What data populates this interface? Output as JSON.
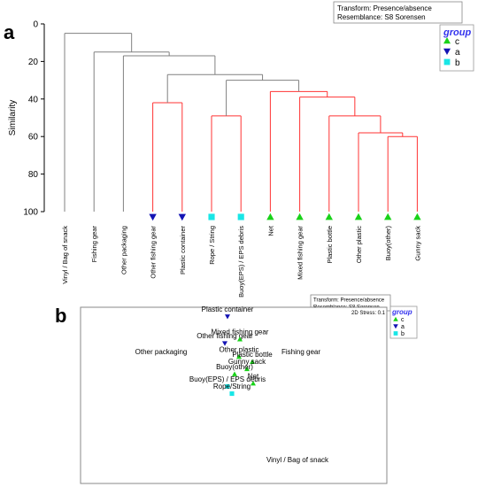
{
  "colors": {
    "c": "#19d219",
    "a": "#1414b4",
    "b": "#19e6e6",
    "link": "#ff3333",
    "tree": "#808080",
    "legend_title": "#3333ee"
  },
  "panel_a": {
    "letter": "a",
    "info": [
      "Transform: Presence/absence",
      "Resemblance: S8 Sorensen"
    ],
    "ylabel": "Similarity",
    "yticks": [
      "0",
      "20",
      "40",
      "60",
      "80",
      "100"
    ],
    "legend": {
      "title": "group",
      "items": [
        {
          "label": "c",
          "group": "c"
        },
        {
          "label": "a",
          "group": "a"
        },
        {
          "label": "b",
          "group": "b"
        }
      ]
    }
  },
  "panel_b": {
    "letter": "b",
    "info": [
      "Transform: Presence/absence",
      "Resemblance: S8 Sorensen"
    ],
    "stress": "2D Stress: 0.1",
    "legend": {
      "title": "group",
      "items": [
        {
          "label": "c",
          "group": "c"
        },
        {
          "label": "a",
          "group": "a"
        },
        {
          "label": "b",
          "group": "b"
        }
      ]
    }
  },
  "chart_data": [
    {
      "type": "dendrogram",
      "ylabel": "Similarity",
      "ylim": [
        0,
        100
      ],
      "leaves": [
        {
          "label": "Vinyl / Bag of snack",
          "group": ""
        },
        {
          "label": "Fishing gear",
          "group": ""
        },
        {
          "label": "Other packaging",
          "group": ""
        },
        {
          "label": "Other fishing gear",
          "group": "a"
        },
        {
          "label": "Plastic container",
          "group": "a"
        },
        {
          "label": "Rope / String",
          "group": "b"
        },
        {
          "label": "Buoy(EPS) / EPS debris",
          "group": "b"
        },
        {
          "label": "Net",
          "group": "c"
        },
        {
          "label": "Mixed fishing gear",
          "group": "c"
        },
        {
          "label": "Plastic bottle",
          "group": "c"
        },
        {
          "label": "Other plastic",
          "group": "c"
        },
        {
          "label": "Buoy(other)",
          "group": "c"
        },
        {
          "label": "Gunny sack",
          "group": "c"
        }
      ],
      "merges": [
        {
          "id": "m1",
          "left": 11,
          "right": 12,
          "sim": 60,
          "sig": true
        },
        {
          "id": "m2",
          "left": 10,
          "right": "m1",
          "sim": 58,
          "sig": true
        },
        {
          "id": "m3",
          "left": 9,
          "right": "m2",
          "sim": 49,
          "sig": true
        },
        {
          "id": "m4",
          "left": 8,
          "right": "m3",
          "sim": 39,
          "sig": true
        },
        {
          "id": "m5",
          "left": 7,
          "right": "m4",
          "sim": 36,
          "sig": true
        },
        {
          "id": "m6",
          "left": 5,
          "right": 6,
          "sim": 49,
          "sig": true
        },
        {
          "id": "m7",
          "left": 3,
          "right": 4,
          "sim": 42,
          "sig": true
        },
        {
          "id": "m8",
          "left": "m6",
          "right": "m5",
          "sim": 30,
          "sig": false
        },
        {
          "id": "m9",
          "left": "m7",
          "right": "m8",
          "sim": 27,
          "sig": false
        },
        {
          "id": "m10",
          "left": 2,
          "right": "m9",
          "sim": 17,
          "sig": false
        },
        {
          "id": "m11",
          "left": 1,
          "right": "m10",
          "sim": 15,
          "sig": false
        },
        {
          "id": "m12",
          "left": 0,
          "right": "m11",
          "sim": 5,
          "sig": false
        }
      ]
    },
    {
      "type": "scatter",
      "subtype": "nMDS",
      "points": [
        {
          "label": "Plastic container",
          "group": "a",
          "x": -0.05,
          "y": 0.84
        },
        {
          "label": "Other fishing gear",
          "group": "a",
          "x": -0.08,
          "y": 0.58
        },
        {
          "label": "Mixed fishing gear",
          "group": "c",
          "x": 0.09,
          "y": 0.62
        },
        {
          "label": "Other plastic",
          "group": "c",
          "x": 0.08,
          "y": 0.45
        },
        {
          "label": "Plastic bottle",
          "group": "c",
          "x": 0.23,
          "y": 0.4
        },
        {
          "label": "Gunny sack",
          "group": "c",
          "x": 0.17,
          "y": 0.33
        },
        {
          "label": "Buoy(other)",
          "group": "c",
          "x": 0.03,
          "y": 0.28
        },
        {
          "label": "Net",
          "group": "c",
          "x": 0.24,
          "y": 0.19
        },
        {
          "label": "Buoy(EPS) / EPS debris",
          "group": "b",
          "x": -0.05,
          "y": 0.16
        },
        {
          "label": "Rope/String",
          "group": "b",
          "x": 0.0,
          "y": 0.09
        },
        {
          "label": "Other packaging",
          "group": "",
          "x": -0.8,
          "y": 0.5
        },
        {
          "label": "Fishing gear",
          "group": "",
          "x": 0.78,
          "y": 0.5
        },
        {
          "label": "Vinyl / Bag of snack",
          "group": "",
          "x": 0.74,
          "y": -0.55
        }
      ]
    }
  ]
}
